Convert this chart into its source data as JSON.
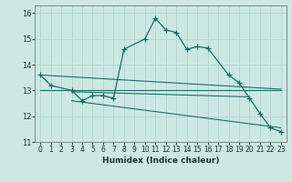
{
  "xlabel": "Humidex (Indice chaleur)",
  "background_color": "#cde8e3",
  "grid_color": "#b0d8d0",
  "line_color": "#1a6b6b",
  "xlim": [
    -0.5,
    23.5
  ],
  "ylim": [
    11,
    16.3
  ],
  "yticks": [
    11,
    12,
    13,
    14,
    15,
    16
  ],
  "xticks": [
    0,
    1,
    2,
    3,
    4,
    5,
    6,
    7,
    8,
    9,
    10,
    11,
    12,
    13,
    14,
    15,
    16,
    17,
    18,
    19,
    20,
    21,
    22,
    23
  ],
  "main_line": {
    "x": [
      0,
      1,
      3,
      4,
      5,
      6,
      7,
      8,
      10,
      11,
      12,
      13,
      14,
      15,
      16,
      18,
      19,
      20,
      21,
      22,
      23
    ],
    "y": [
      13.6,
      13.2,
      13.0,
      12.6,
      12.8,
      12.8,
      12.7,
      14.6,
      15.0,
      15.8,
      15.35,
      15.25,
      14.6,
      14.7,
      14.65,
      13.6,
      13.3,
      12.7,
      12.1,
      11.55,
      11.4
    ]
  },
  "straight_lines": [
    {
      "x": [
        0,
        23
      ],
      "y": [
        13.6,
        13.05
      ]
    },
    {
      "x": [
        0,
        23
      ],
      "y": [
        13.0,
        13.0
      ]
    },
    {
      "x": [
        3,
        20
      ],
      "y": [
        12.95,
        12.75
      ]
    },
    {
      "x": [
        3,
        23
      ],
      "y": [
        12.6,
        11.55
      ]
    }
  ]
}
